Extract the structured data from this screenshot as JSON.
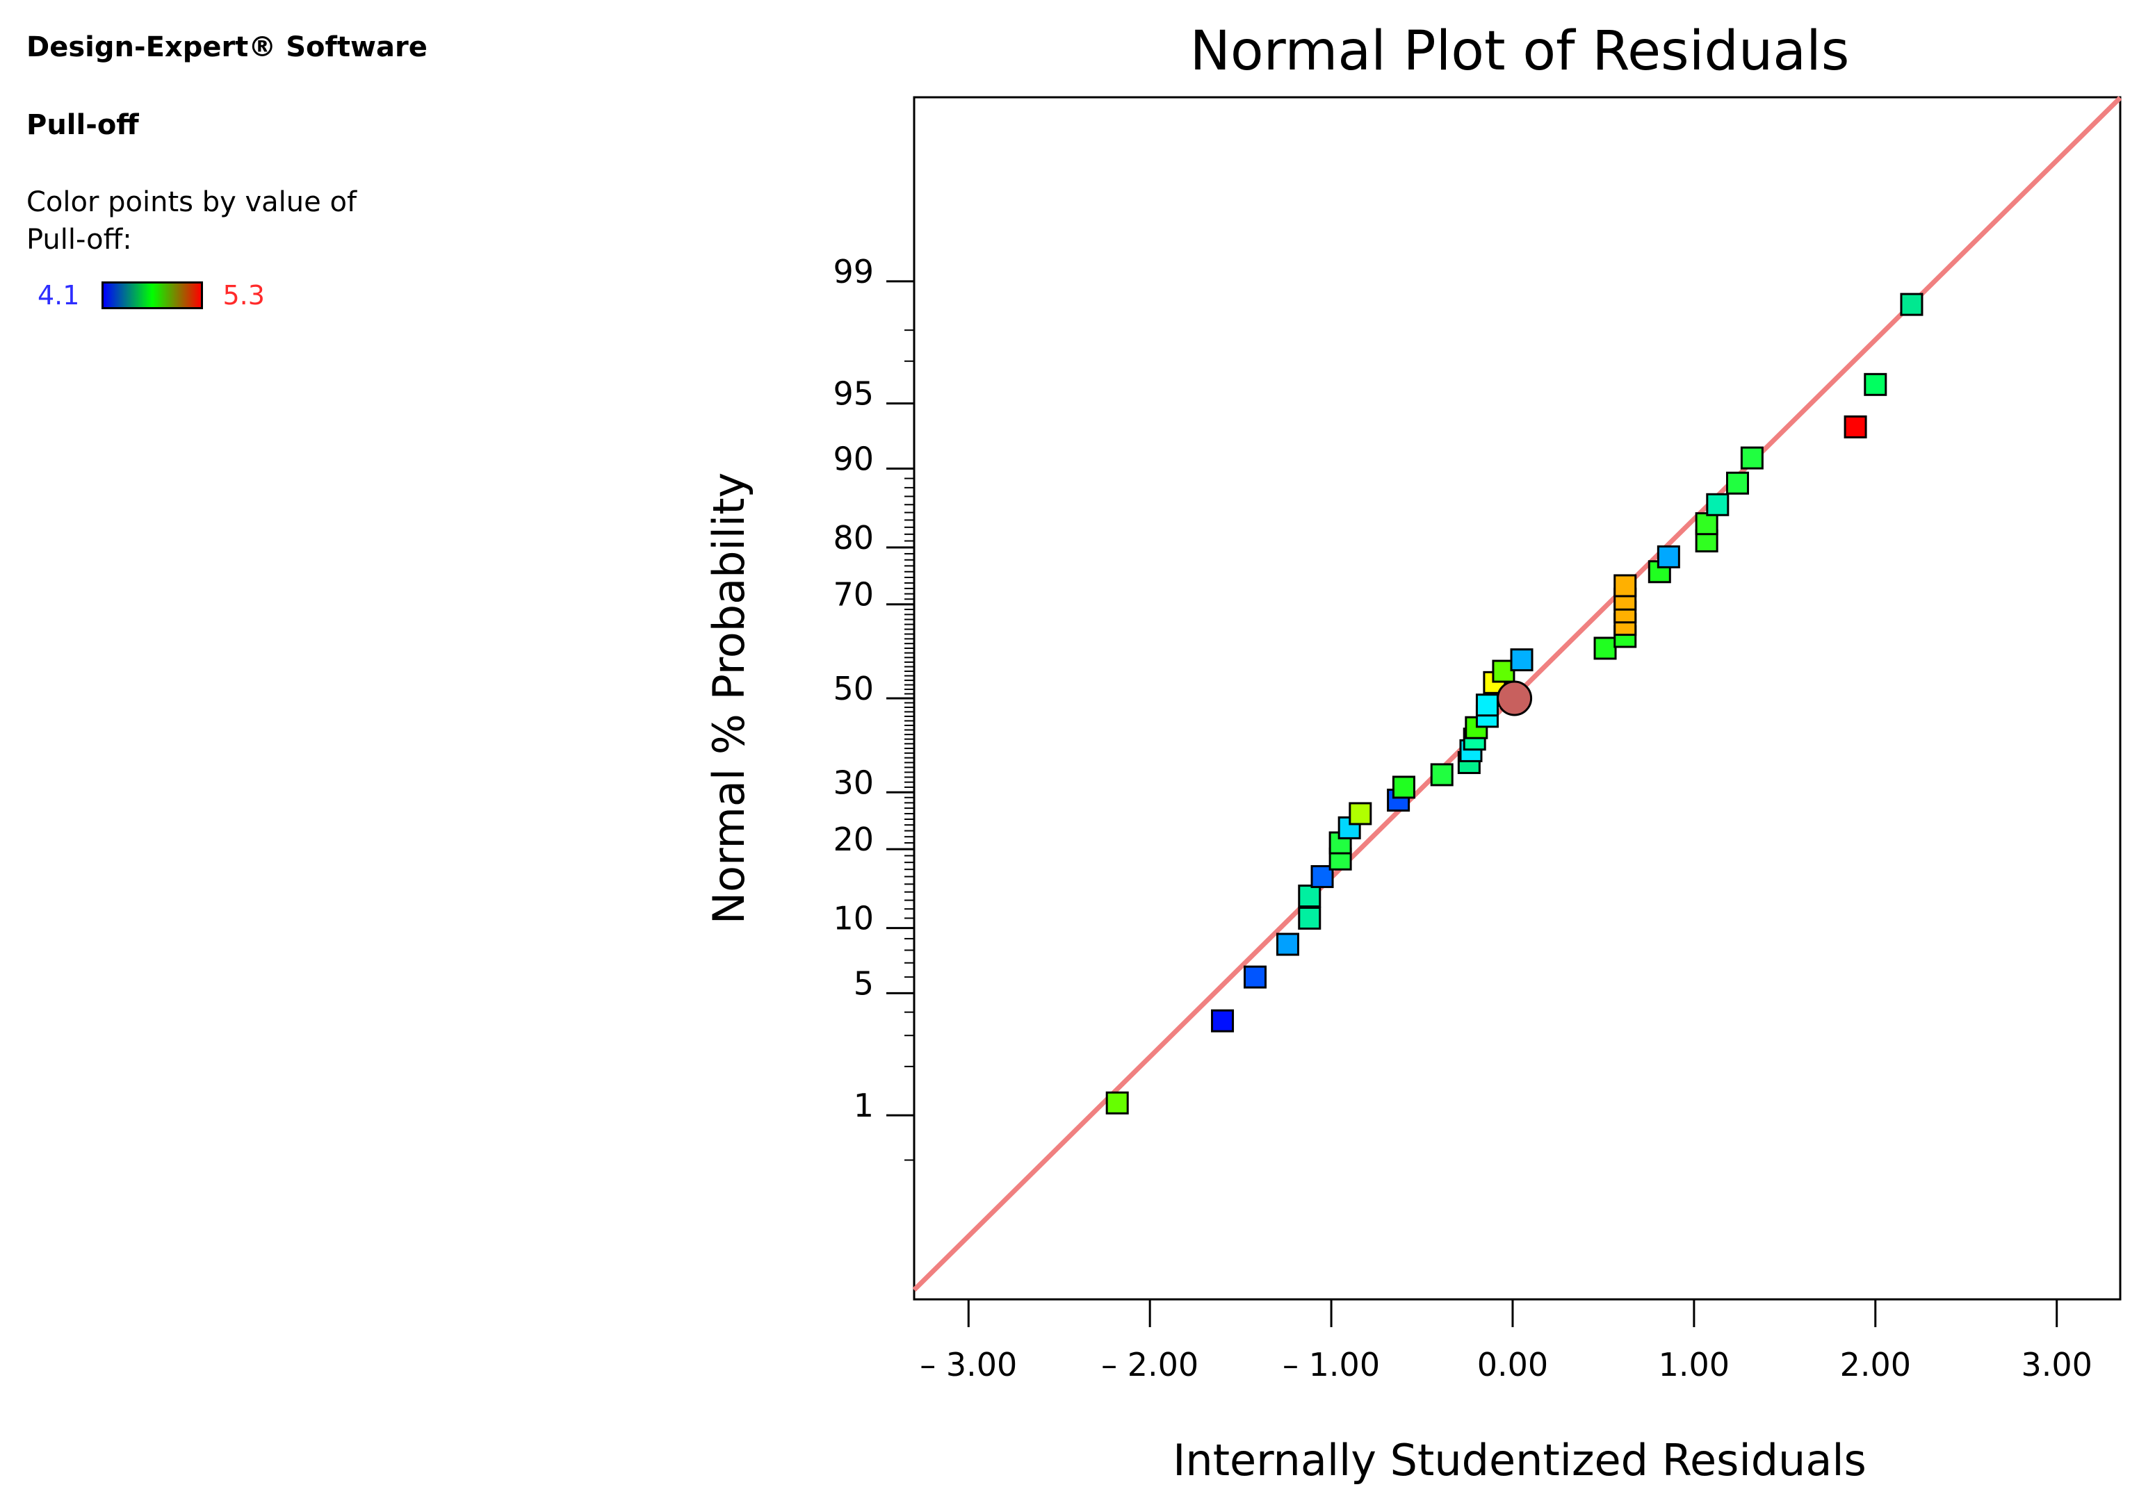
{
  "sidebar": {
    "software": "Design-Expert® Software",
    "response": "Pull-off",
    "color_by_label": "Color points by value of Pull-off:",
    "legend_min": "4.1",
    "legend_max": "5.3"
  },
  "colors": {
    "fit_line": "#f08080",
    "legend_min_text": "#2e2eff",
    "legend_max_text": "#ff2a2a",
    "gradient": [
      "#0000ff",
      "#00ff00",
      "#ff0000"
    ],
    "center_point": "#c8605e"
  },
  "chart_data": {
    "type": "scatter",
    "title": "Normal Plot of Residuals",
    "xlabel": "Internally Studentized Residuals",
    "ylabel": "Normal % Probability",
    "xlim": [
      -3.3,
      3.35
    ],
    "x_ticks": [
      -3,
      -2,
      -1,
      0,
      1,
      2,
      3
    ],
    "x_tick_labels": [
      "– 3.00",
      "– 2.00",
      "– 1.00",
      "0.00",
      "1.00",
      "2.00",
      "3.00"
    ],
    "y_scale": "normal-probability",
    "ylim_percent": [
      0.04,
      99.96
    ],
    "y_ticks": [
      1,
      5,
      10,
      20,
      30,
      50,
      70,
      80,
      90,
      95,
      99
    ],
    "y_tick_labels": [
      "1",
      "5",
      "10",
      "20",
      "30",
      "50",
      "70",
      "80",
      "90",
      "95",
      "99"
    ],
    "fit_line": {
      "x_at_start": -3.3,
      "x_at_end": 3.35,
      "slope": 1,
      "intercept": 0
    },
    "points": [
      {
        "x": -2.18,
        "p": 1.2,
        "color": "#66ff00"
      },
      {
        "x": -1.6,
        "p": 3.6,
        "color": "#0010ff"
      },
      {
        "x": -1.42,
        "p": 6.0,
        "color": "#0055ff"
      },
      {
        "x": -1.24,
        "p": 8.5,
        "color": "#00a0ff"
      },
      {
        "x": -1.12,
        "p": 11.0,
        "color": "#00f0a0"
      },
      {
        "x": -1.12,
        "p": 13.5,
        "color": "#00f0a0"
      },
      {
        "x": -1.05,
        "p": 16.0,
        "color": "#0066ff"
      },
      {
        "x": -0.95,
        "p": 18.5,
        "color": "#20ff40"
      },
      {
        "x": -0.95,
        "p": 21.0,
        "color": "#20ff40"
      },
      {
        "x": -0.9,
        "p": 23.5,
        "color": "#00d8ff"
      },
      {
        "x": -0.84,
        "p": 26.0,
        "color": "#b0ff00"
      },
      {
        "x": -0.63,
        "p": 28.5,
        "color": "#0050ff"
      },
      {
        "x": -0.6,
        "p": 31.0,
        "color": "#20ff20"
      },
      {
        "x": -0.39,
        "p": 33.5,
        "color": "#20ff40"
      },
      {
        "x": -0.24,
        "p": 36.0,
        "color": "#00f08a"
      },
      {
        "x": -0.23,
        "p": 38.5,
        "color": "#00e8ff"
      },
      {
        "x": -0.21,
        "p": 41.0,
        "color": "#00ffa0"
      },
      {
        "x": -0.2,
        "p": 43.5,
        "color": "#40ff00"
      },
      {
        "x": -0.14,
        "p": 46.0,
        "color": "#00f0ff"
      },
      {
        "x": -0.14,
        "p": 48.5,
        "color": "#00f0ff"
      },
      {
        "x": -0.1,
        "p": 53.5,
        "color": "#ffff00"
      },
      {
        "x": -0.05,
        "p": 56.0,
        "color": "#60ff00"
      },
      {
        "x": 0.05,
        "p": 58.5,
        "color": "#00b0ff"
      },
      {
        "x": 0.51,
        "p": 61.0,
        "color": "#20ff20"
      },
      {
        "x": 0.62,
        "p": 63.5,
        "color": "#20ff20"
      },
      {
        "x": 0.62,
        "p": 66.0,
        "color": "#ffb000"
      },
      {
        "x": 0.62,
        "p": 68.5,
        "color": "#ffb000"
      },
      {
        "x": 0.62,
        "p": 71.0,
        "color": "#ffb000"
      },
      {
        "x": 0.62,
        "p": 73.5,
        "color": "#ffb000"
      },
      {
        "x": 0.81,
        "p": 76.0,
        "color": "#20ff20"
      },
      {
        "x": 0.86,
        "p": 78.5,
        "color": "#00a8ff"
      },
      {
        "x": 1.07,
        "p": 81.0,
        "color": "#30ff20"
      },
      {
        "x": 1.07,
        "p": 83.5,
        "color": "#30ff20"
      },
      {
        "x": 1.13,
        "p": 86.0,
        "color": "#00f0b0"
      },
      {
        "x": 1.24,
        "p": 88.5,
        "color": "#20ff40"
      },
      {
        "x": 1.32,
        "p": 91.0,
        "color": "#20ff40"
      },
      {
        "x": 1.89,
        "p": 93.5,
        "color": "#ff0000"
      },
      {
        "x": 2.0,
        "p": 96.0,
        "color": "#00ff60"
      },
      {
        "x": 2.2,
        "p": 98.6,
        "color": "#00e890"
      }
    ],
    "center_point": {
      "x": 0.01,
      "p": 50.0,
      "shape": "circle"
    }
  }
}
